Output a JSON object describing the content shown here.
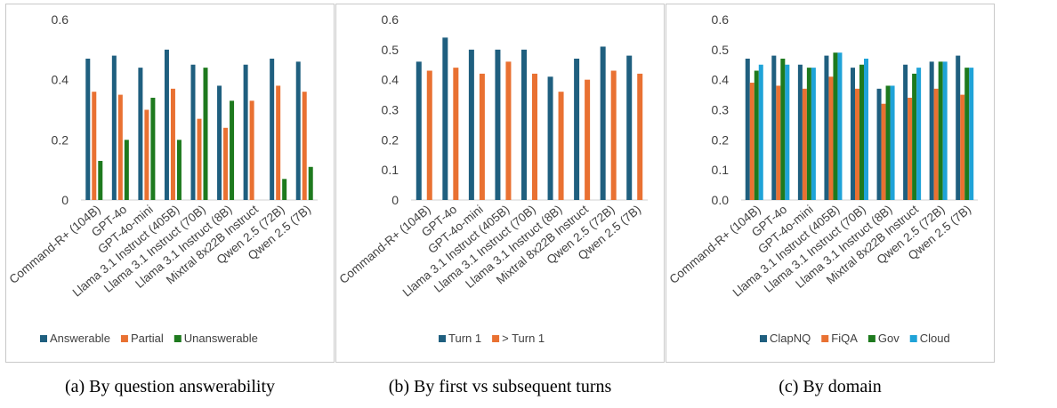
{
  "models": [
    "Command-R+ (104B)",
    "GPT-4o",
    "GPT-4o-mini",
    "Llama 3.1 Instruct (405B)",
    "Llama 3.1 Instruct (70B)",
    "Llama 3.1 Instruct (8B)",
    "Mixtral 8x22B Instruct",
    "Qwen 2.5 (72B)",
    "Qwen 2.5 (7B)"
  ],
  "chart_data": [
    {
      "type": "bar",
      "caption": "(a) By question answerability",
      "ylim": [
        0,
        0.6
      ],
      "yticks": [
        "0",
        "0.2",
        "0.4",
        "0.6"
      ],
      "legend": "bottom",
      "grid": false,
      "series": [
        {
          "name": "Answerable",
          "color": "#1f5f7f",
          "values": [
            0.47,
            0.48,
            0.44,
            0.5,
            0.45,
            0.38,
            0.45,
            0.47,
            0.46
          ]
        },
        {
          "name": "Partial",
          "color": "#e97132",
          "values": [
            0.36,
            0.35,
            0.3,
            0.37,
            0.27,
            0.24,
            0.33,
            0.38,
            0.36
          ]
        },
        {
          "name": "Unanswerable",
          "color": "#1e7a1e",
          "values": [
            0.13,
            0.2,
            0.34,
            0.2,
            0.44,
            0.33,
            0,
            0.07,
            0.11
          ]
        }
      ]
    },
    {
      "type": "bar",
      "caption": "(b) By first vs subsequent turns",
      "ylim": [
        0,
        0.6
      ],
      "yticks": [
        "0",
        "0.1",
        "0.2",
        "0.3",
        "0.4",
        "0.5",
        "0.6"
      ],
      "legend": "bottom",
      "grid": false,
      "series": [
        {
          "name": "Turn 1",
          "color": "#1f5f7f",
          "values": [
            0.46,
            0.54,
            0.5,
            0.5,
            0.5,
            0.41,
            0.47,
            0.51,
            0.48
          ]
        },
        {
          "name": "> Turn 1",
          "color": "#e97132",
          "values": [
            0.43,
            0.44,
            0.42,
            0.46,
            0.42,
            0.36,
            0.4,
            0.43,
            0.42
          ]
        }
      ]
    },
    {
      "type": "bar",
      "caption": "(c) By domain",
      "ylim": [
        0,
        0.6
      ],
      "yticks": [
        "0.0",
        "0.1",
        "0.2",
        "0.3",
        "0.4",
        "0.5",
        "0.6"
      ],
      "legend": "bottom",
      "grid": false,
      "series": [
        {
          "name": "ClapNQ",
          "color": "#1f5f7f",
          "values": [
            0.47,
            0.48,
            0.45,
            0.48,
            0.44,
            0.37,
            0.45,
            0.46,
            0.48
          ]
        },
        {
          "name": "FiQA",
          "color": "#e97132",
          "values": [
            0.39,
            0.38,
            0.37,
            0.41,
            0.37,
            0.32,
            0.34,
            0.37,
            0.35
          ]
        },
        {
          "name": "Gov",
          "color": "#1e7a1e",
          "values": [
            0.43,
            0.47,
            0.44,
            0.49,
            0.45,
            0.38,
            0.42,
            0.46,
            0.44
          ]
        },
        {
          "name": "Cloud",
          "color": "#1fa3d8",
          "values": [
            0.45,
            0.45,
            0.44,
            0.49,
            0.47,
            0.38,
            0.44,
            0.46,
            0.44
          ]
        }
      ]
    }
  ]
}
